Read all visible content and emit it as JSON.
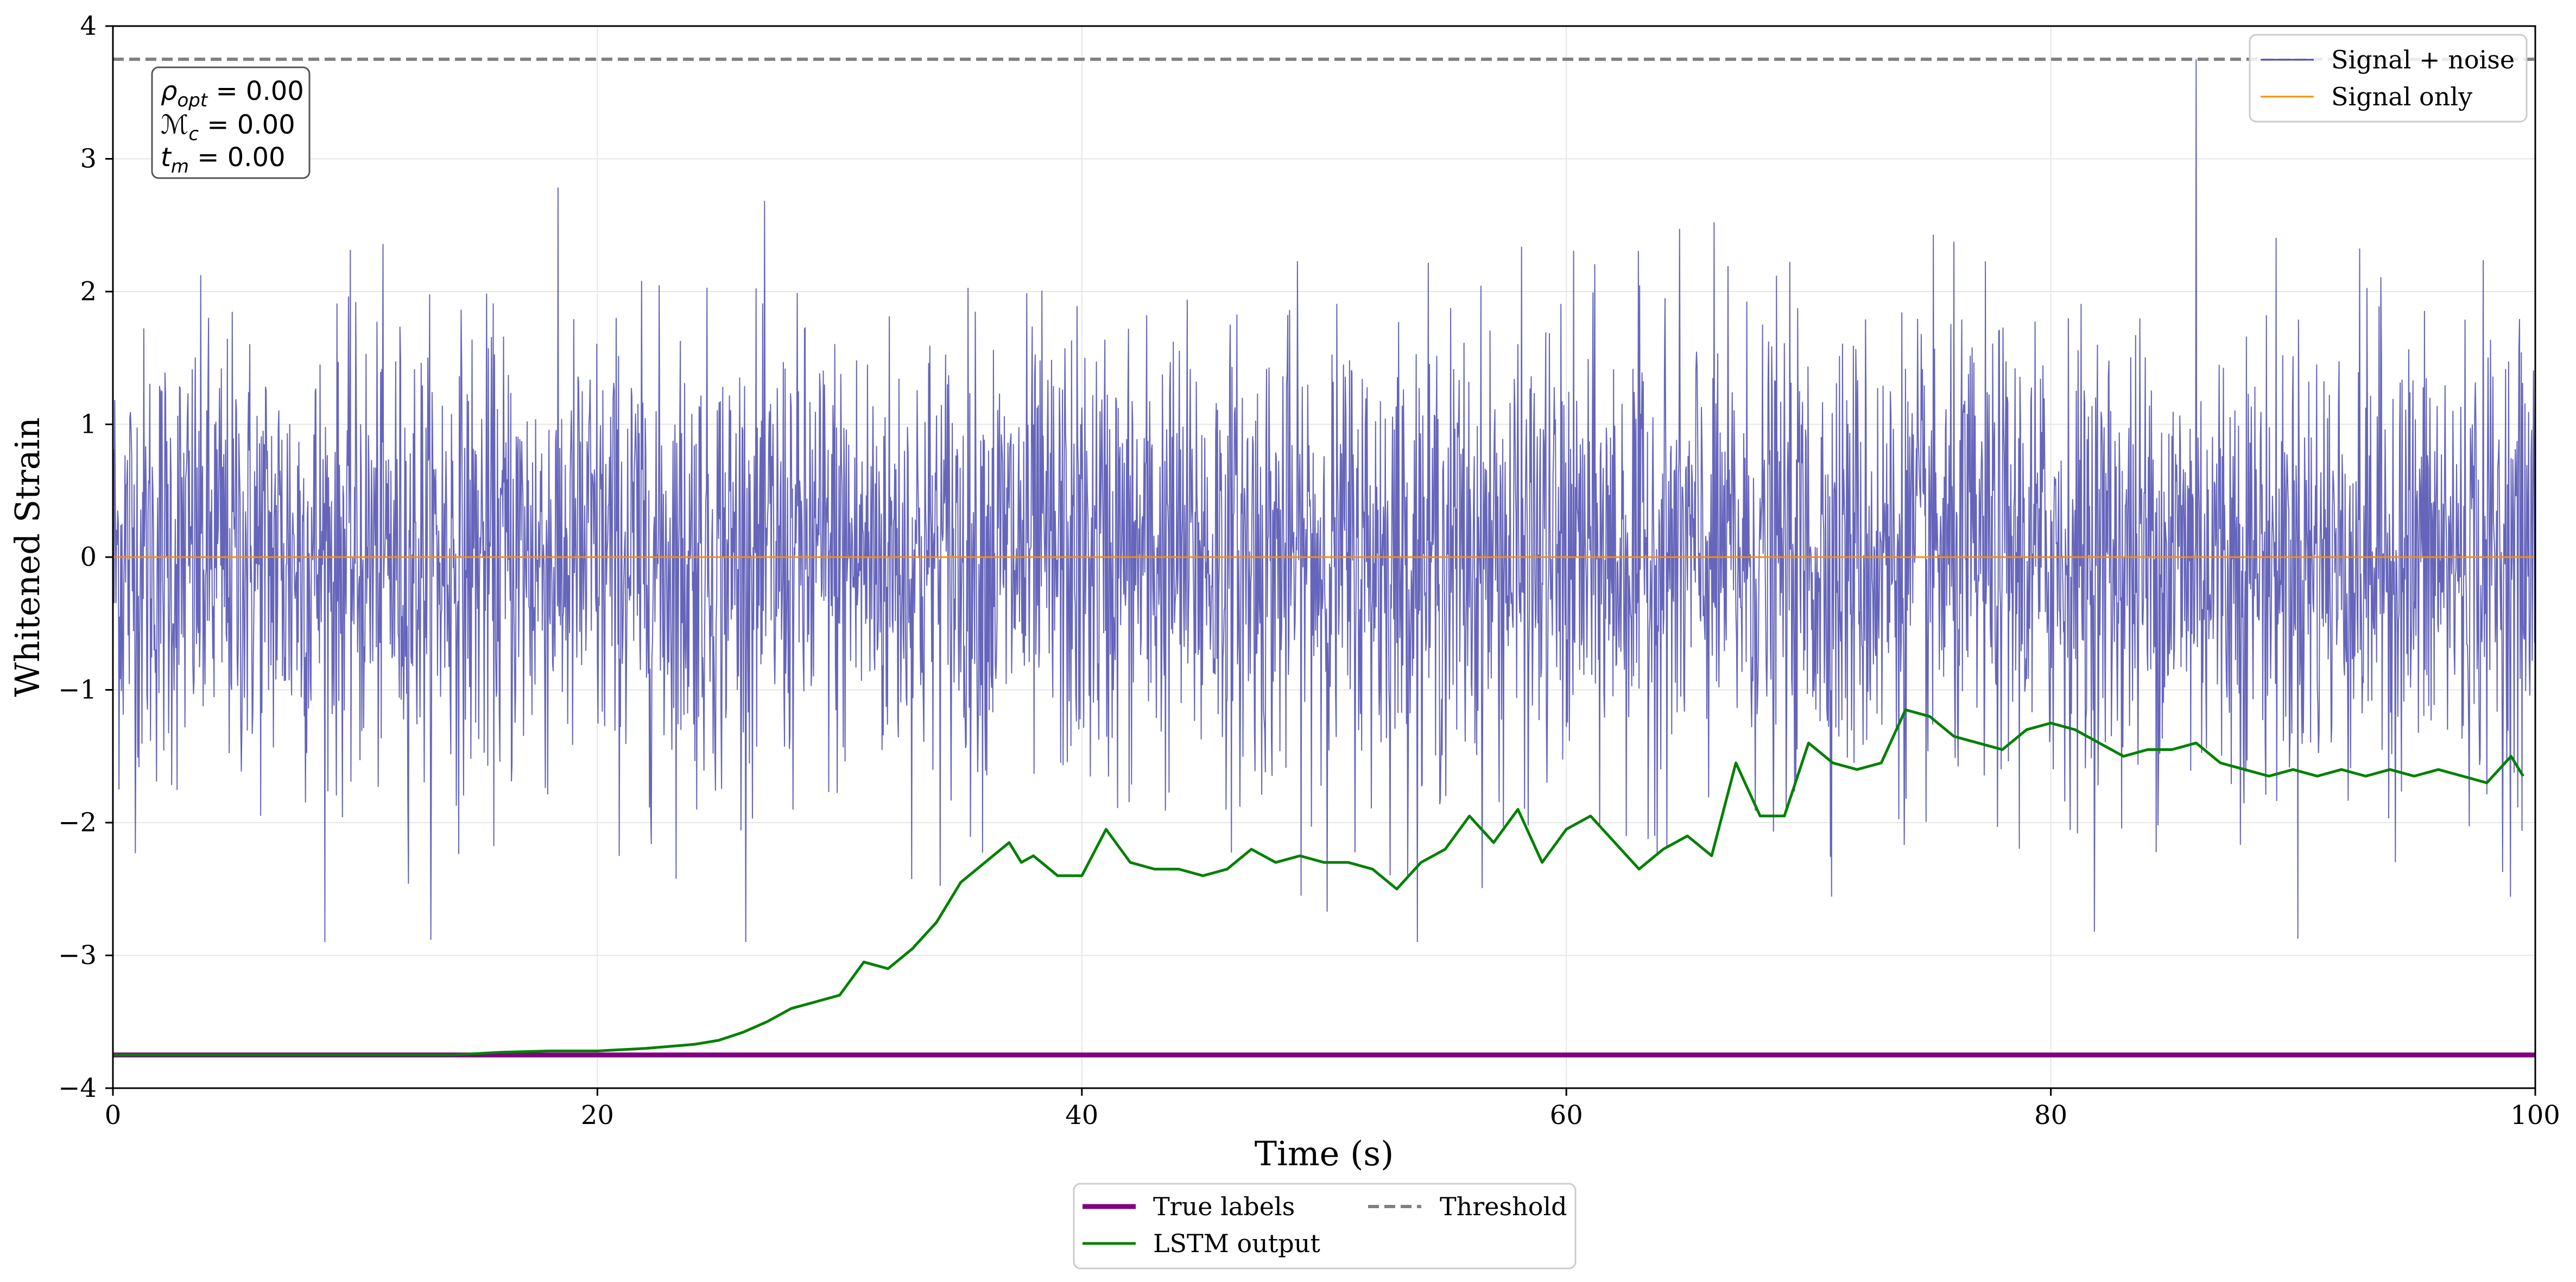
{
  "chart_data": {
    "type": "line",
    "title": "",
    "xlabel": "Time (s)",
    "ylabel": "Whitened Strain",
    "xlim": [
      0,
      100
    ],
    "ylim": [
      -4,
      4
    ],
    "x_ticks": [
      "0",
      "20",
      "40",
      "60",
      "80",
      "100"
    ],
    "y_ticks": [
      "−4",
      "−3",
      "−2",
      "−1",
      "0",
      "1",
      "2",
      "3",
      "4"
    ],
    "grid": true,
    "annotations": [
      {
        "symbol": "ρ",
        "sub": "opt",
        "text": " = 0.00"
      },
      {
        "symbol": "ℳ",
        "sub": "c",
        "text": " = 0.00"
      },
      {
        "symbol": "t",
        "sub": "m",
        "text": " = 0.00"
      }
    ],
    "legend_top_right": [
      "Signal + noise",
      "Signal only"
    ],
    "legend_bottom": [
      "True labels",
      "LSTM output",
      "Threshold"
    ],
    "series": [
      {
        "name": "Signal + noise",
        "color": "#4a4aaf",
        "description": "noisy whitened strain, roughly zero-mean, amplitude about ±2.5, peaks near 3.75 around t=86"
      },
      {
        "name": "Signal only",
        "color": "#ff8c00",
        "values_constant": 0.0
      },
      {
        "name": "True labels",
        "color": "#800080",
        "values_constant": -3.75
      },
      {
        "name": "Threshold",
        "color": "#808080",
        "values_constant": 3.75
      },
      {
        "name": "LSTM output",
        "color": "#008000",
        "x": [
          0,
          5,
          10,
          14,
          16,
          18,
          20,
          22,
          24,
          25,
          26,
          27,
          28,
          29,
          30,
          31,
          32,
          33,
          34,
          35,
          36,
          37,
          37.5,
          38,
          39,
          40,
          41,
          42,
          43,
          44,
          45,
          46,
          47,
          48,
          49,
          50,
          51,
          52,
          53,
          54,
          55,
          56,
          57,
          58,
          59,
          60,
          61,
          62,
          63,
          64,
          65,
          66,
          67,
          68,
          69,
          70,
          71,
          72,
          73,
          74,
          75,
          76,
          77,
          78,
          79,
          80,
          81,
          82,
          83,
          84,
          85,
          86,
          87,
          88,
          89,
          90,
          91,
          92,
          93,
          94,
          95,
          96,
          97,
          98,
          99,
          99.5
        ],
        "y": [
          -3.75,
          -3.75,
          -3.75,
          -3.75,
          -3.73,
          -3.72,
          -3.72,
          -3.7,
          -3.67,
          -3.64,
          -3.58,
          -3.5,
          -3.4,
          -3.35,
          -3.3,
          -3.05,
          -3.1,
          -2.95,
          -2.75,
          -2.45,
          -2.3,
          -2.15,
          -2.3,
          -2.25,
          -2.4,
          -2.4,
          -2.05,
          -2.3,
          -2.35,
          -2.35,
          -2.4,
          -2.35,
          -2.2,
          -2.3,
          -2.25,
          -2.3,
          -2.3,
          -2.35,
          -2.5,
          -2.3,
          -2.2,
          -1.95,
          -2.15,
          -1.9,
          -2.3,
          -2.05,
          -1.95,
          -2.15,
          -2.35,
          -2.2,
          -2.1,
          -2.25,
          -1.55,
          -1.95,
          -1.95,
          -1.4,
          -1.55,
          -1.6,
          -1.55,
          -1.15,
          -1.2,
          -1.35,
          -1.4,
          -1.45,
          -1.3,
          -1.25,
          -1.3,
          -1.4,
          -1.5,
          -1.45,
          -1.45,
          -1.4,
          -1.55,
          -1.6,
          -1.65,
          -1.6,
          -1.65,
          -1.6,
          -1.65,
          -1.6,
          -1.65,
          -1.6,
          -1.65,
          -1.7,
          -1.5,
          -1.65
        ]
      }
    ]
  }
}
